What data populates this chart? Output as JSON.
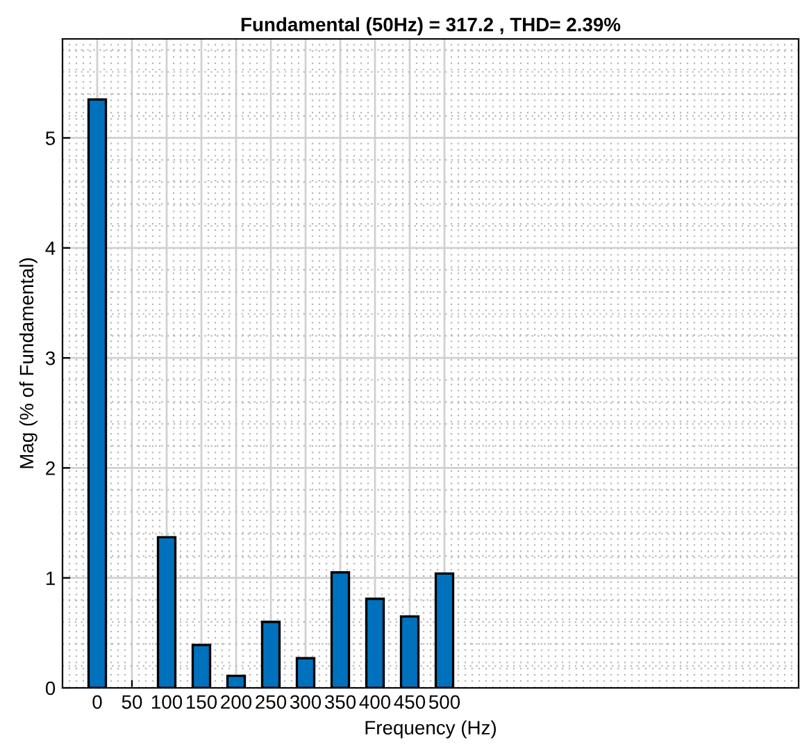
{
  "chart_data": {
    "type": "bar",
    "title": "Fundamental (50Hz) = 317.2 , THD= 2.39%",
    "xlabel": "Frequency (Hz)",
    "ylabel": "Mag (% of Fundamental)",
    "x": [
      0,
      50,
      100,
      150,
      200,
      250,
      300,
      350,
      400,
      450,
      500
    ],
    "values": [
      5.35,
      null,
      1.37,
      0.39,
      0.11,
      0.6,
      0.27,
      1.05,
      0.81,
      0.65,
      1.04
    ],
    "color": "#0072bd",
    "xlim": [
      -50,
      1010
    ],
    "xticks": [
      0,
      50,
      100,
      150,
      200,
      250,
      300,
      350,
      400,
      450,
      500
    ],
    "ylim": [
      0,
      5.9
    ],
    "yticks": [
      0,
      1,
      2,
      3,
      4,
      5
    ],
    "grid": true
  }
}
